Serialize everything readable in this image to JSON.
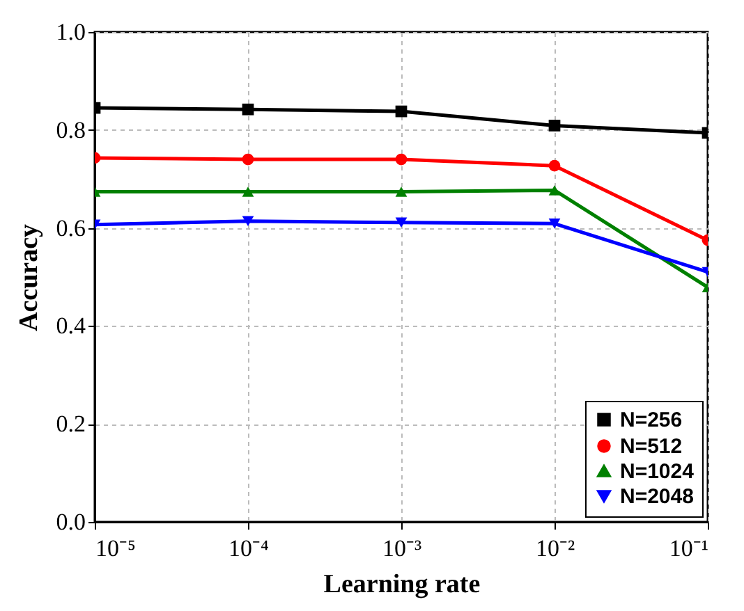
{
  "chart_data": {
    "type": "line",
    "xlabel": "Learning rate",
    "ylabel": "Accuracy",
    "x": [
      1e-05,
      0.0001,
      0.001,
      0.01,
      0.1
    ],
    "series": [
      {
        "name": "N=256",
        "color": "#000000",
        "marker": "square",
        "values": [
          0.845,
          0.842,
          0.838,
          0.809,
          0.794
        ]
      },
      {
        "name": "N=512",
        "color": "#ff0000",
        "marker": "circle",
        "values": [
          0.743,
          0.74,
          0.74,
          0.727,
          0.575
        ]
      },
      {
        "name": "N=1024",
        "color": "#008000",
        "marker": "triangle",
        "values": [
          0.674,
          0.674,
          0.674,
          0.677,
          0.479
        ]
      },
      {
        "name": "N=2048",
        "color": "#0000ff",
        "marker": "triangle-down",
        "values": [
          0.607,
          0.614,
          0.611,
          0.609,
          0.51
        ]
      }
    ],
    "log": "x",
    "xlim": [
      1e-05,
      0.1
    ],
    "xticks": [
      {
        "value": 1e-05,
        "label": "10⁻⁵"
      },
      {
        "value": 0.0001,
        "label": "10⁻⁴"
      },
      {
        "value": 0.001,
        "label": "10⁻³"
      },
      {
        "value": 0.01,
        "label": "10⁻²"
      },
      {
        "value": 0.1,
        "label": "10⁻¹"
      }
    ],
    "ylim": [
      0,
      1
    ],
    "yticks": [
      {
        "value": 0,
        "label": "0.0"
      },
      {
        "value": 0.2,
        "label": "0.2"
      },
      {
        "value": 0.4,
        "label": "0.4"
      },
      {
        "value": 0.6,
        "label": "0.6"
      },
      {
        "value": 0.8,
        "label": "0.8"
      },
      {
        "value": 1,
        "label": "1.0"
      }
    ],
    "grid": true,
    "legend": "bottom right",
    "line_style": "solid"
  }
}
